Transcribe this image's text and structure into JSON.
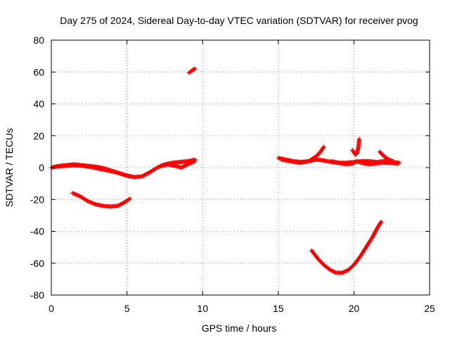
{
  "chart_data": {
    "type": "scatter",
    "title": "Day 275 of 2024, Sidereal Day-to-day VTEC variation (SDTVAR) for receiver pvog",
    "xlabel": "GPS time / hours",
    "ylabel": "SDTVAR / TECUs",
    "xlim": [
      0,
      25
    ],
    "ylim": [
      -80,
      80
    ],
    "xticks": [
      0,
      5,
      10,
      15,
      20,
      25
    ],
    "yticks": [
      -80,
      -60,
      -40,
      -20,
      0,
      20,
      40,
      60,
      80
    ],
    "grid": true,
    "marker": "+",
    "color": "#ff0000",
    "series": [
      {
        "name": "track1",
        "x": [
          0.0,
          0.5,
          1.0,
          1.5,
          2.0,
          2.5,
          3.0,
          3.5,
          4.0,
          4.5,
          5.0,
          5.5,
          6.0,
          6.5,
          7.0,
          7.5,
          8.0,
          8.5,
          9.0,
          9.5
        ],
        "y": [
          0,
          1,
          1.5,
          2,
          1.5,
          1,
          0.5,
          -0.5,
          -2,
          -3.5,
          -5,
          -6,
          -5.5,
          -3,
          0,
          2,
          3,
          3.5,
          4,
          5
        ]
      },
      {
        "name": "track2",
        "x": [
          0.2,
          0.8,
          1.5,
          2.2,
          2.8,
          3.3,
          3.8,
          4.3,
          4.8,
          5.2
        ],
        "y": [
          0.5,
          1,
          1.5,
          1,
          0,
          -1,
          -2,
          -3,
          -4.5,
          -5.5
        ]
      },
      {
        "name": "track3",
        "x": [
          7.2,
          7.7,
          8.2,
          8.6,
          9.0,
          9.5
        ],
        "y": [
          1,
          2,
          1,
          0,
          2,
          4
        ]
      },
      {
        "name": "track4",
        "x": [
          1.4,
          1.9,
          2.4,
          2.9,
          3.4,
          3.9,
          4.4,
          4.8,
          5.2
        ],
        "y": [
          -16,
          -18,
          -21,
          -23,
          -24,
          -24.5,
          -24,
          -22,
          -19.5
        ]
      },
      {
        "name": "track5",
        "x": [
          9.1,
          9.3,
          9.5
        ],
        "y": [
          59.5,
          61,
          62
        ]
      },
      {
        "name": "track6",
        "x": [
          15.0,
          15.5,
          16.0,
          16.5,
          17.0,
          17.5,
          18.0,
          18.5,
          19.0,
          19.5,
          20.0,
          20.5,
          21.0,
          21.5,
          22.0,
          22.5,
          23.0
        ],
        "y": [
          6,
          5,
          4,
          3.5,
          4,
          5,
          4.5,
          3.5,
          3,
          3,
          3.5,
          4,
          4,
          3.5,
          4,
          3.5,
          3
        ]
      },
      {
        "name": "track7",
        "x": [
          15.2,
          15.8,
          16.4,
          17.0,
          17.5,
          17.8,
          18.0
        ],
        "y": [
          5,
          4,
          3,
          4,
          7,
          10,
          13
        ]
      },
      {
        "name": "track8",
        "x": [
          18.5,
          19.0,
          19.5,
          19.9,
          20.2,
          20.5,
          21.0,
          21.8,
          22.4,
          22.9
        ],
        "y": [
          4,
          3,
          2,
          2.5,
          4,
          3,
          2,
          3,
          3,
          2.5
        ]
      },
      {
        "name": "track9",
        "x": [
          19.9,
          20.1,
          20.2,
          20.3,
          20.35
        ],
        "y": [
          11,
          8,
          9,
          13,
          18
        ]
      },
      {
        "name": "track10",
        "x": [
          21.7,
          22.0,
          22.3,
          22.6
        ],
        "y": [
          10,
          7,
          5,
          4
        ]
      },
      {
        "name": "track11",
        "x": [
          17.2,
          17.6,
          18.0,
          18.4,
          18.8,
          19.2,
          19.6,
          20.0,
          20.4,
          20.8,
          21.2,
          21.6,
          21.8
        ],
        "y": [
          -52,
          -57,
          -61,
          -64,
          -66,
          -66,
          -64.5,
          -61,
          -56,
          -50,
          -44,
          -37,
          -34
        ]
      }
    ]
  }
}
